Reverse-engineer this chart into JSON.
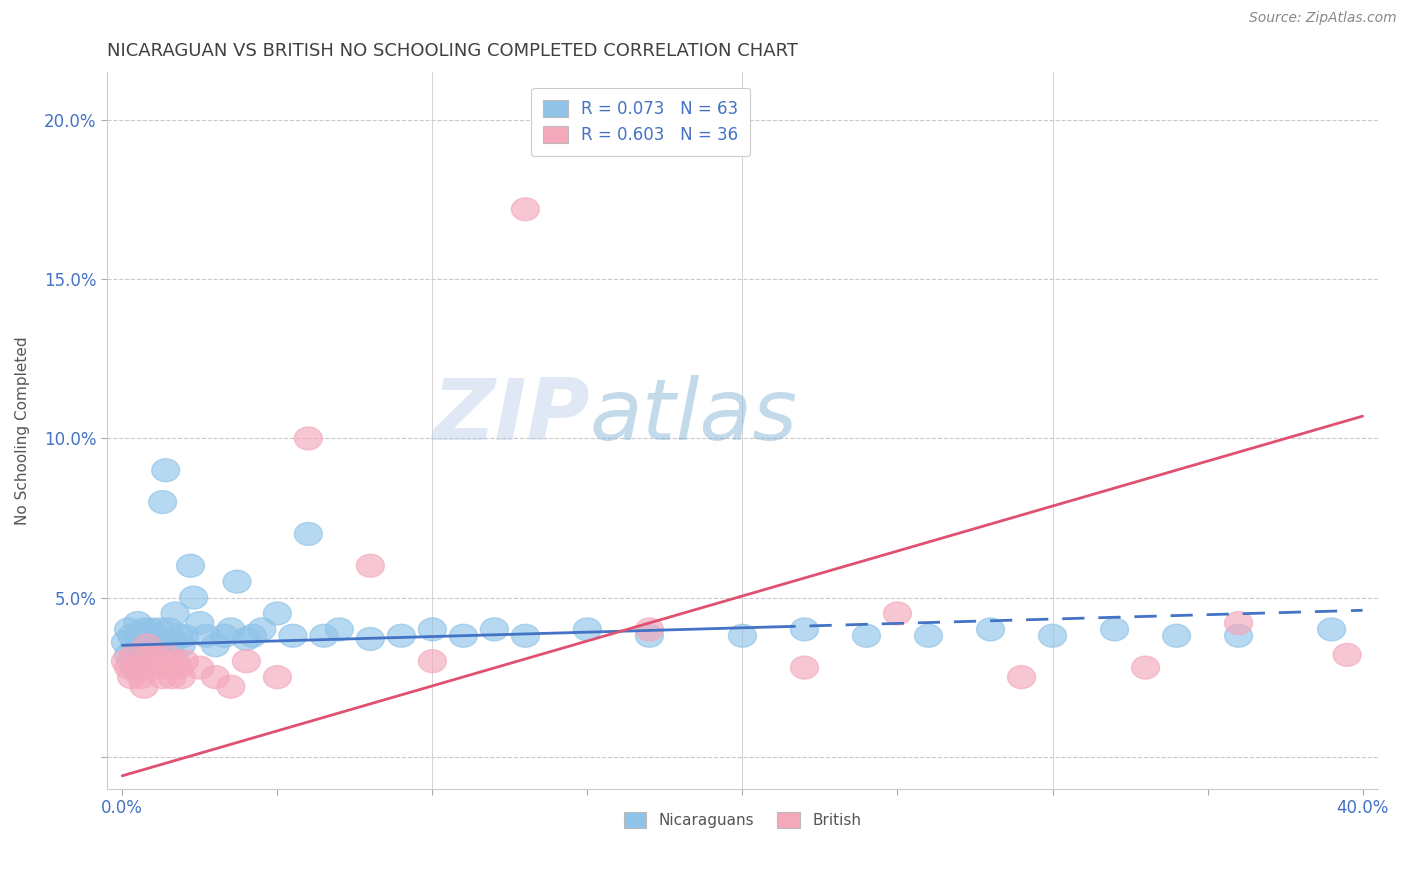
{
  "title": "NICARAGUAN VS BRITISH NO SCHOOLING COMPLETED CORRELATION CHART",
  "source": "Source: ZipAtlas.com",
  "ylabel": "No Schooling Completed",
  "xlim": [
    -0.005,
    0.405
  ],
  "ylim": [
    -0.01,
    0.215
  ],
  "xticks": [
    0.0,
    0.05,
    0.1,
    0.15,
    0.2,
    0.25,
    0.3,
    0.35,
    0.4
  ],
  "xticklabels": [
    "0.0%",
    "",
    "",
    "",
    "",
    "",
    "",
    "",
    "40.0%"
  ],
  "yticks": [
    0.0,
    0.05,
    0.1,
    0.15,
    0.2
  ],
  "yticklabels": [
    "",
    "5.0%",
    "10.0%",
    "15.0%",
    "20.0%"
  ],
  "nicaraguan_color": "#8FC3E8",
  "british_color": "#F4A8BC",
  "nicaraguan_line_color": "#4472C4",
  "british_line_color": "#E05070",
  "R_nicaraguan": 0.073,
  "N_nicaraguan": 63,
  "R_british": 0.603,
  "N_british": 36,
  "watermark_color": "#C8DCF0",
  "background_color": "#FFFFFF",
  "grid_color": "#BBBBBB",
  "tick_color": "#4472C4",
  "title_color": "#404040",
  "nic_line_x": [
    0.0,
    0.4
  ],
  "nic_line_y": [
    0.035,
    0.046
  ],
  "nic_line_solid_end": 0.21,
  "brit_line_x": [
    0.0,
    0.4
  ],
  "brit_line_y": [
    -0.006,
    0.107
  ],
  "nicaraguan_x": [
    0.001,
    0.002,
    0.002,
    0.003,
    0.003,
    0.004,
    0.004,
    0.005,
    0.005,
    0.006,
    0.006,
    0.007,
    0.007,
    0.008,
    0.008,
    0.009,
    0.009,
    0.01,
    0.01,
    0.011,
    0.012,
    0.013,
    0.014,
    0.015,
    0.016,
    0.017,
    0.018,
    0.019,
    0.02,
    0.022,
    0.023,
    0.025,
    0.027,
    0.03,
    0.033,
    0.035,
    0.037,
    0.04,
    0.042,
    0.045,
    0.05,
    0.055,
    0.06,
    0.065,
    0.07,
    0.08,
    0.09,
    0.1,
    0.11,
    0.12,
    0.13,
    0.15,
    0.17,
    0.2,
    0.22,
    0.24,
    0.26,
    0.28,
    0.3,
    0.32,
    0.34,
    0.36,
    0.39
  ],
  "nicaraguan_y": [
    0.036,
    0.04,
    0.032,
    0.038,
    0.03,
    0.035,
    0.028,
    0.042,
    0.033,
    0.038,
    0.03,
    0.04,
    0.035,
    0.038,
    0.032,
    0.04,
    0.036,
    0.038,
    0.033,
    0.036,
    0.04,
    0.08,
    0.09,
    0.04,
    0.036,
    0.045,
    0.038,
    0.035,
    0.038,
    0.06,
    0.05,
    0.042,
    0.038,
    0.035,
    0.038,
    0.04,
    0.055,
    0.037,
    0.038,
    0.04,
    0.045,
    0.038,
    0.07,
    0.038,
    0.04,
    0.037,
    0.038,
    0.04,
    0.038,
    0.04,
    0.038,
    0.04,
    0.038,
    0.038,
    0.04,
    0.038,
    0.038,
    0.04,
    0.038,
    0.04,
    0.038,
    0.038,
    0.04
  ],
  "british_x": [
    0.001,
    0.002,
    0.003,
    0.004,
    0.005,
    0.006,
    0.007,
    0.008,
    0.009,
    0.01,
    0.011,
    0.012,
    0.013,
    0.014,
    0.015,
    0.016,
    0.017,
    0.018,
    0.019,
    0.02,
    0.025,
    0.03,
    0.035,
    0.04,
    0.05,
    0.06,
    0.08,
    0.1,
    0.13,
    0.17,
    0.22,
    0.25,
    0.29,
    0.33,
    0.36,
    0.395
  ],
  "british_y": [
    0.03,
    0.028,
    0.025,
    0.032,
    0.028,
    0.025,
    0.022,
    0.035,
    0.028,
    0.032,
    0.03,
    0.028,
    0.025,
    0.032,
    0.028,
    0.025,
    0.03,
    0.028,
    0.025,
    0.03,
    0.028,
    0.025,
    0.022,
    0.03,
    0.025,
    0.1,
    0.06,
    0.03,
    0.172,
    0.04,
    0.028,
    0.045,
    0.025,
    0.028,
    0.042,
    0.032
  ]
}
